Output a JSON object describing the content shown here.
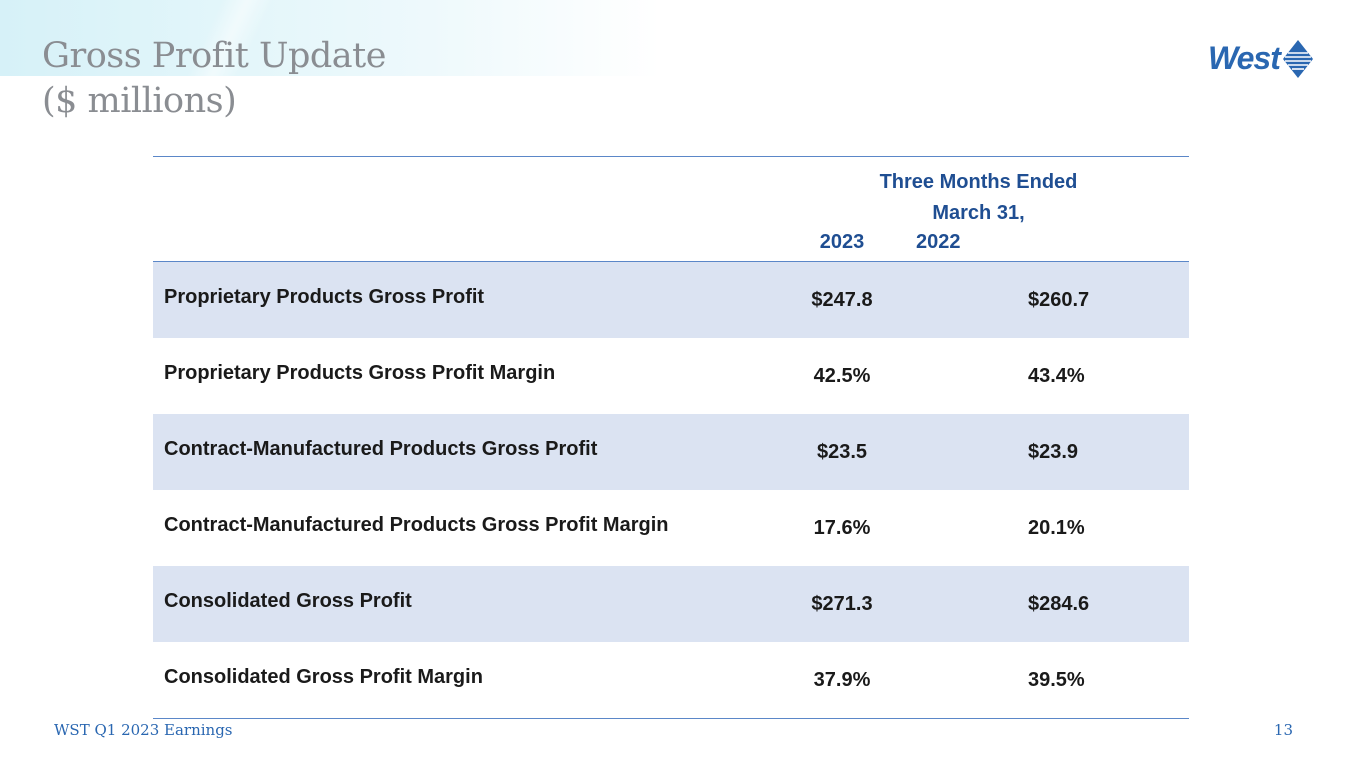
{
  "slide": {
    "title_line1": "Gross Profit Update",
    "title_line2": "($ millions)"
  },
  "logo": {
    "text": "West",
    "color": "#2a67b1"
  },
  "table": {
    "period_header_line1": "Three Months Ended",
    "period_header_line2": "March 31,",
    "year_a": "2023",
    "year_b": "2022",
    "rows": [
      {
        "label": "Proprietary Products Gross Profit",
        "v2023": "$247.8",
        "v2022": "$260.7"
      },
      {
        "label": "Proprietary Products Gross Profit Margin",
        "v2023": "42.5%",
        "v2022": "43.4%"
      },
      {
        "label": "Contract-Manufactured Products Gross Profit",
        "v2023": "$23.5",
        "v2022": "$23.9"
      },
      {
        "label": "Contract-Manufactured Products Gross Profit Margin",
        "v2023": "17.6%",
        "v2022": "20.1%"
      },
      {
        "label": "Consolidated Gross Profit",
        "v2023": "$271.3",
        "v2022": "$284.6"
      },
      {
        "label": "Consolidated Gross Profit Margin",
        "v2023": "37.9%",
        "v2022": "39.5%"
      }
    ]
  },
  "footer": {
    "left": "WST Q1 2023 Earnings",
    "page_number": "13"
  },
  "colors": {
    "header_text": "#1f4e92",
    "row_shade": "#dbe3f2",
    "rule": "#5b87c8",
    "title_text": "#8a8d92"
  }
}
